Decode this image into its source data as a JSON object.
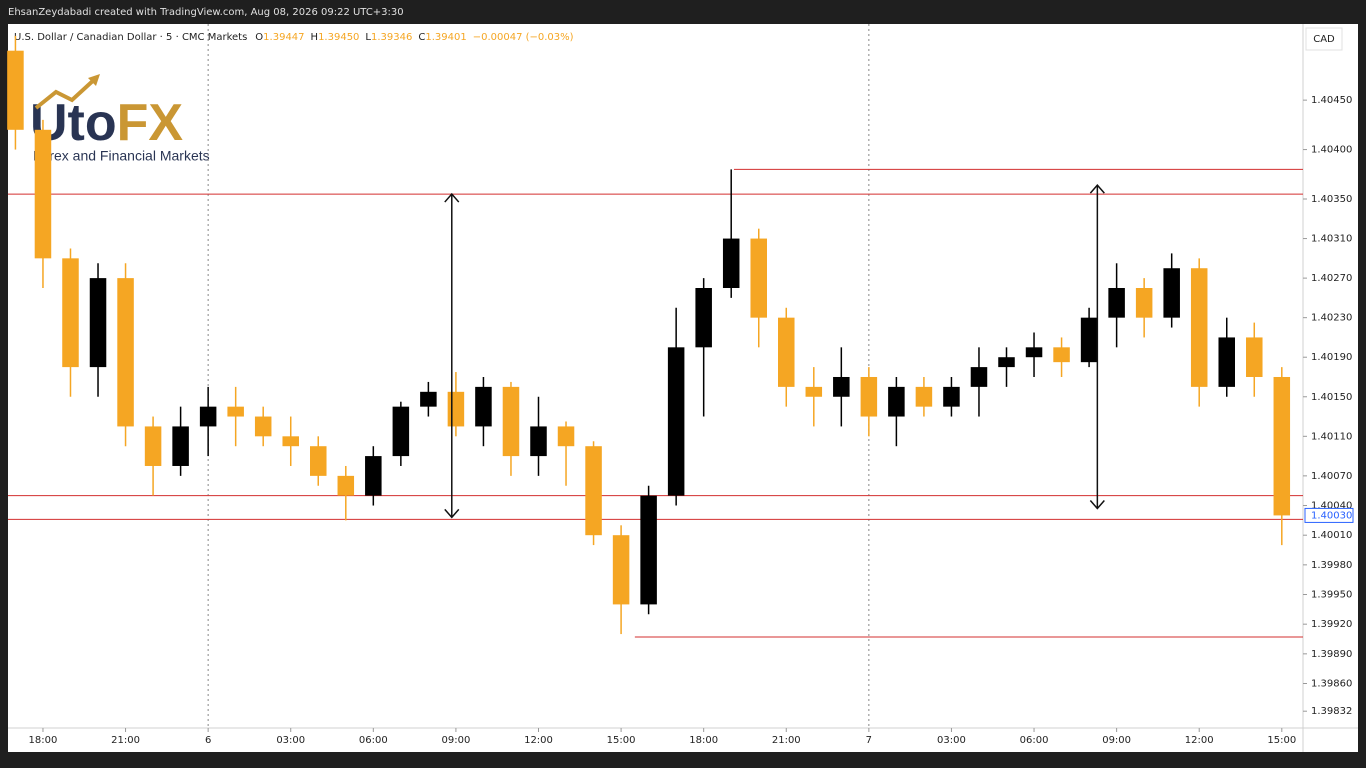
{
  "attribution": "EhsanZeydabadi created with TradingView.com, Aug 08, 2026 09:22 UTC+3:30",
  "logo": {
    "brand": "Uto",
    "brand_accent": "FX",
    "tagline": "Forex and Financial Markets"
  },
  "chart_data": {
    "type": "candlestick",
    "title": "U.S. Dollar / Canadian Dollar · 5 · CMC Markets",
    "ohlc_labels": [
      "O",
      "H",
      "L",
      "C"
    ],
    "ohlc_values": [
      "1.39447",
      "1.39450",
      "1.39346",
      "1.39401"
    ],
    "change": "−0.00047 (−0.03%)",
    "currency": "CAD",
    "up_color": "#000000",
    "down_color": "#f5a623",
    "line_color": "#d32f2f",
    "x": [
      -1,
      0,
      1,
      2,
      3,
      4,
      5,
      6,
      7,
      8,
      9,
      10,
      11,
      12,
      13,
      14,
      15,
      16,
      17,
      18,
      19,
      20,
      21,
      22,
      23,
      24,
      25,
      26,
      27,
      28,
      29,
      30,
      31,
      32,
      33,
      34,
      35,
      36,
      37,
      38,
      39,
      40,
      41,
      42,
      43,
      44,
      45
    ],
    "open": [
      1.405,
      1.4042,
      1.4029,
      1.4018,
      1.4027,
      1.4012,
      1.4008,
      1.4012,
      1.4014,
      1.4013,
      1.4011,
      1.401,
      1.4007,
      1.4005,
      1.4009,
      1.4014,
      1.40155,
      1.4012,
      1.4016,
      1.4009,
      1.4012,
      1.401,
      1.4001,
      1.3994,
      1.4005,
      1.402,
      1.4026,
      1.4031,
      1.4023,
      1.4016,
      1.4015,
      1.4017,
      1.4013,
      1.4016,
      1.4014,
      1.4016,
      1.4018,
      1.4019,
      1.402,
      1.40185,
      1.4023,
      1.4026,
      1.4023,
      1.4028,
      1.4016,
      1.4021,
      1.4017
    ],
    "high": [
      1.40515,
      1.4043,
      1.403,
      1.40285,
      1.40285,
      1.4013,
      1.4014,
      1.4016,
      1.4016,
      1.4014,
      1.4013,
      1.4011,
      1.4008,
      1.401,
      1.40145,
      1.40165,
      1.40175,
      1.4017,
      1.40165,
      1.4015,
      1.40125,
      1.40105,
      1.4002,
      1.4006,
      1.4024,
      1.4027,
      1.4038,
      1.4032,
      1.4024,
      1.4018,
      1.402,
      1.4018,
      1.4017,
      1.4017,
      1.4017,
      1.402,
      1.402,
      1.40215,
      1.4021,
      1.4024,
      1.40285,
      1.4027,
      1.40295,
      1.4029,
      1.4023,
      1.40225,
      1.4018
    ],
    "low": [
      1.404,
      1.4026,
      1.4015,
      1.4015,
      1.401,
      1.4005,
      1.4007,
      1.4009,
      1.401,
      1.401,
      1.4008,
      1.4006,
      1.40025,
      1.4004,
      1.4008,
      1.4013,
      1.4011,
      1.401,
      1.4007,
      1.4007,
      1.4006,
      1.4,
      1.3991,
      1.3993,
      1.4004,
      1.4013,
      1.4025,
      1.402,
      1.4014,
      1.4012,
      1.4012,
      1.4011,
      1.401,
      1.4013,
      1.4013,
      1.4013,
      1.4016,
      1.4017,
      1.4017,
      1.4018,
      1.402,
      1.4021,
      1.4022,
      1.4014,
      1.4015,
      1.4015,
      1.4
    ],
    "close": [
      1.4042,
      1.4029,
      1.4018,
      1.4027,
      1.4012,
      1.4008,
      1.4012,
      1.4014,
      1.4013,
      1.4011,
      1.401,
      1.4007,
      1.4005,
      1.4009,
      1.4014,
      1.40155,
      1.4012,
      1.4016,
      1.4009,
      1.4012,
      1.401,
      1.4001,
      1.3994,
      1.4005,
      1.402,
      1.4026,
      1.4031,
      1.4023,
      1.4016,
      1.4015,
      1.4017,
      1.4013,
      1.4016,
      1.4014,
      1.4016,
      1.4018,
      1.4019,
      1.402,
      1.40185,
      1.4023,
      1.4026,
      1.4023,
      1.4028,
      1.4016,
      1.4021,
      1.4017,
      1.4003
    ],
    "xlim": [
      -1.27,
      45.77
    ],
    "ylim": [
      1.39815,
      1.40527
    ],
    "xticks": [
      {
        "value": 0,
        "label": "18:00"
      },
      {
        "value": 3,
        "label": "21:00"
      },
      6,
      {
        "value": 9,
        "label": "03:00"
      },
      {
        "value": 12,
        "label": "06:00"
      },
      {
        "value": 15,
        "label": "09:00"
      },
      {
        "value": 18,
        "label": "12:00"
      },
      {
        "value": 21,
        "label": "15:00"
      },
      {
        "value": 24,
        "label": "18:00"
      },
      {
        "value": 27,
        "label": "21:00"
      },
      {
        "value": 30,
        "label": "7"
      },
      {
        "value": 33,
        "label": "03:00"
      },
      {
        "value": 36,
        "label": "06:00"
      },
      {
        "value": 39,
        "label": "09:00"
      },
      {
        "value": 42,
        "label": "12:00"
      },
      {
        "value": 45,
        "label": "15:00"
      }
    ],
    "day_separators": [
      6,
      30
    ],
    "yticks": [
      {
        "value": 1.4045,
        "label": "1.40450"
      },
      {
        "value": 1.404,
        "label": "1.40400"
      },
      {
        "value": 1.4035,
        "label": "1.40350"
      },
      {
        "value": 1.4031,
        "label": "1.40310"
      },
      {
        "value": 1.4027,
        "label": "1.40270"
      },
      {
        "value": 1.4023,
        "label": "1.40230"
      },
      {
        "value": 1.4019,
        "label": "1.40190"
      },
      {
        "value": 1.4015,
        "label": "1.40150"
      },
      {
        "value": 1.4011,
        "label": "1.40110"
      },
      {
        "value": 1.4007,
        "label": "1.40070"
      },
      {
        "value": 1.4004,
        "label": "1.40040"
      },
      {
        "value": 1.4001,
        "label": "1.40010"
      },
      {
        "value": 1.3998,
        "label": "1.39980"
      },
      {
        "value": 1.3995,
        "label": "1.39950"
      },
      {
        "value": 1.3992,
        "label": "1.39920"
      },
      {
        "value": 1.3989,
        "label": "1.39890"
      },
      {
        "value": 1.3986,
        "label": "1.39860"
      },
      1.39832
    ],
    "last_price": {
      "value": 1.4003,
      "label": "1.40030"
    },
    "hlines": [
      {
        "price": 1.40355
      },
      {
        "price": 1.4005
      },
      {
        "price": 1.40026
      },
      {
        "price": 1.4038,
        "from": 25.1
      },
      {
        "price": 1.39907,
        "from": 21.5
      }
    ],
    "arrows": [
      {
        "x": 14.85,
        "from": 1.40355,
        "to": 1.40028
      },
      {
        "x": 38.3,
        "from": 1.40364,
        "to": 1.40037
      }
    ]
  }
}
